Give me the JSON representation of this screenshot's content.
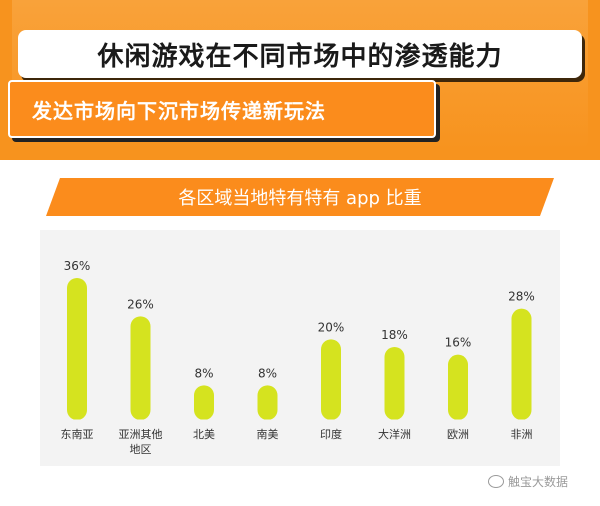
{
  "header": {
    "title": "休闲游戏在不同市场中的渗透能力",
    "subtitle": "发达市场向下沉市场传递新玩法"
  },
  "section": {
    "label": "各区域当地特有特有 app 比重"
  },
  "watermark": {
    "label": "触宝大数据"
  },
  "colors": {
    "orange": "#f7931e",
    "bar": "#d5e31f",
    "panel": "#f3f3f3"
  },
  "chart_data": {
    "type": "bar",
    "title": "各区域当地特有特有 app 比重",
    "categories": [
      "东南亚",
      "亚洲其他地区",
      "北美",
      "南美",
      "印度",
      "大洋洲",
      "欧洲",
      "非洲"
    ],
    "category_lines": [
      [
        "东南亚"
      ],
      [
        "亚洲其他",
        "地区"
      ],
      [
        "北美"
      ],
      [
        "南美"
      ],
      [
        "印度"
      ],
      [
        "大洋洲"
      ],
      [
        "欧洲"
      ],
      [
        "非洲"
      ]
    ],
    "values": [
      36,
      26,
      8,
      8,
      20,
      18,
      16,
      28
    ],
    "value_labels": [
      "36%",
      "26%",
      "8%",
      "8%",
      "20%",
      "18%",
      "16%",
      "28%"
    ],
    "unit": "%",
    "ylim": [
      0,
      36
    ],
    "grid": false,
    "legend": "none"
  }
}
